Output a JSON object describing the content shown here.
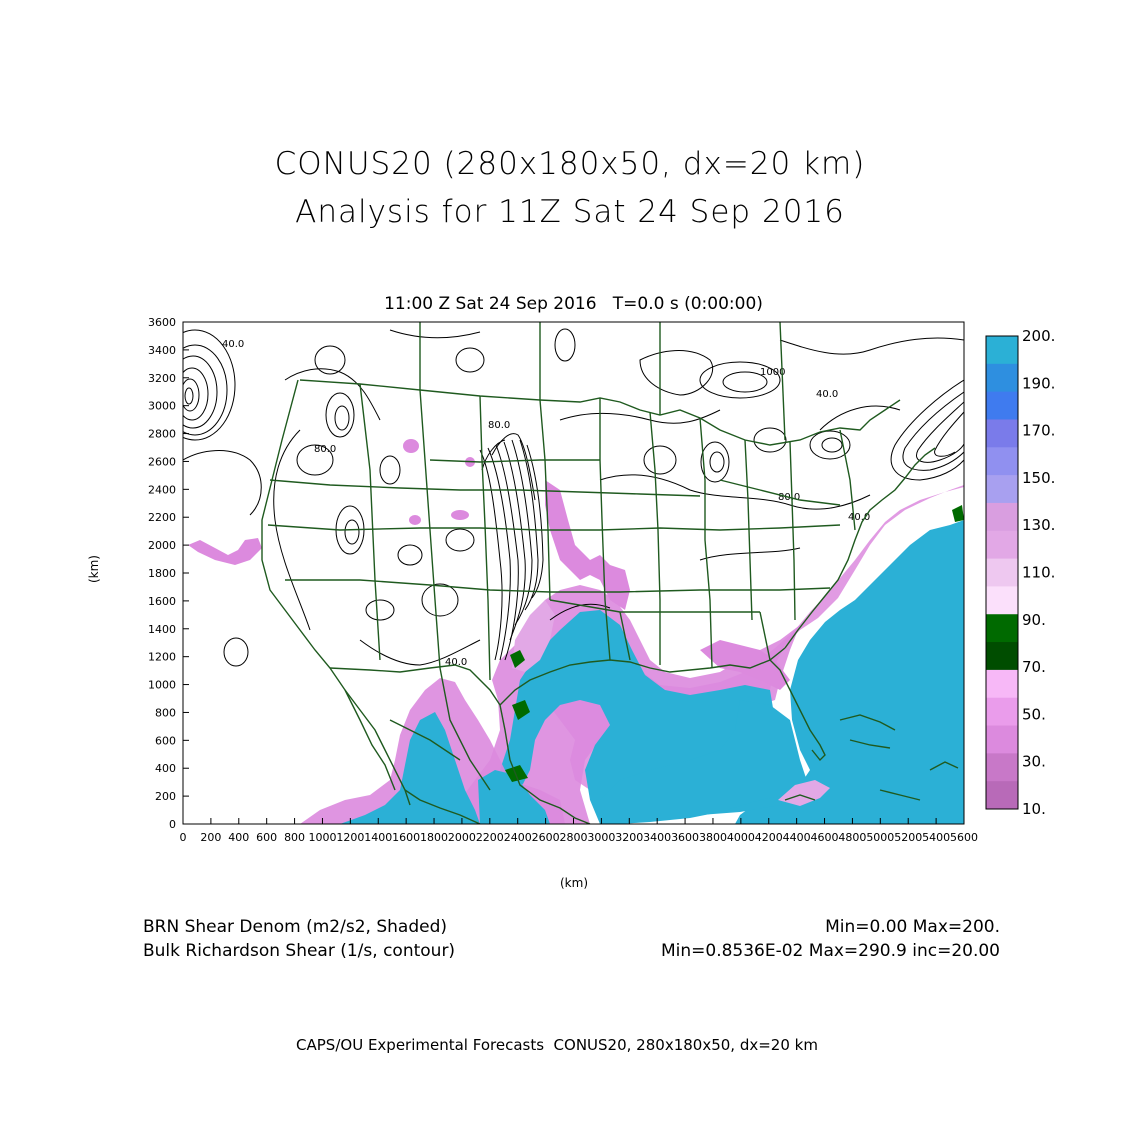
{
  "title_line1": "CONUS20 (280x180x50, dx=20 km)",
  "title_line2": "Analysis for 11Z Sat 24 Sep 2016",
  "subtitle": "11:00 Z Sat 24 Sep 2016   T=0.0 s (0:00:00)",
  "axis": {
    "xlabel": "(km)",
    "ylabel": "(km)",
    "x_ticks": [
      "0",
      "200",
      "400",
      "600",
      "800",
      "1000",
      "1200",
      "1400",
      "1600",
      "1800",
      "2000",
      "2200",
      "2400",
      "2600",
      "2800",
      "3000",
      "3200",
      "3400",
      "3600",
      "3800",
      "4000",
      "4200",
      "4400",
      "4600",
      "4800",
      "5000",
      "5200",
      "5400",
      "5600"
    ],
    "y_ticks": [
      "0",
      "200",
      "400",
      "600",
      "800",
      "1000",
      "1200",
      "1400",
      "1600",
      "1800",
      "2000",
      "2200",
      "2400",
      "2600",
      "2800",
      "3000",
      "3200",
      "3400",
      "3600"
    ],
    "x_range": [
      0,
      5600
    ],
    "y_range": [
      0,
      3600
    ]
  },
  "colorbar": {
    "labels": [
      "200.",
      "190.",
      "170.",
      "150.",
      "130.",
      "110.",
      "90.",
      "70.",
      "50.",
      "30.",
      "10."
    ],
    "colors": [
      "#2bb0d6",
      "#2e8fe0",
      "#3f7bef",
      "#7a7bea",
      "#9090f0",
      "#a8a0f0",
      "#d99ee0",
      "#e2a8e6",
      "#eec8f0",
      "#fbe0fb",
      "#006a00",
      "#004d00",
      "#f7b8f7",
      "#ea9ceb",
      "#dc8ade",
      "#c878c8",
      "#b86ab8"
    ]
  },
  "contour_labels": [
    "40.0",
    "80.0",
    "40.0",
    "80.0",
    "40.0",
    "1000",
    "40.0",
    "80.0"
  ],
  "footer": {
    "left1": "BRN Shear Denom (m2/s2, Shaded)",
    "left2": "Bulk Richardson Shear (1/s, contour)",
    "right1": "Min=0.00 Max=200.",
    "right2": "Min=0.8536E-02 Max=290.9 inc=20.00"
  },
  "credit": "CAPS/OU Experimental Forecasts  CONUS20, 280x180x50, dx=20 km"
}
